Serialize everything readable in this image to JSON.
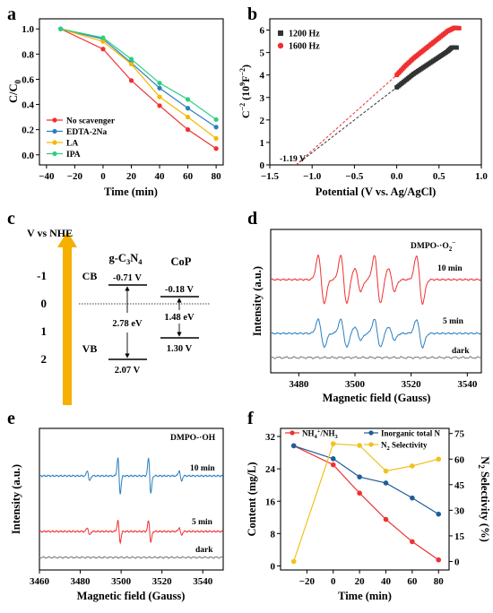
{
  "colors": {
    "red": "#f03030",
    "blue": "#2a7fc0",
    "orange": "#f5b800",
    "green": "#2ccf80",
    "dark": "#333333",
    "gray": "#777777",
    "darkblue": "#1f5d96",
    "yellow": "#f0c21c",
    "arrow": "#f5b000"
  },
  "chart_data": [
    {
      "panel": "a",
      "type": "line",
      "xlabel": "Time (min)",
      "ylabel": "C/C",
      "ylabel_sub": "0",
      "xlim": [
        -45,
        85
      ],
      "ylim": [
        -0.08,
        1.08
      ],
      "xticks": [
        -40,
        -20,
        0,
        20,
        40,
        60,
        80
      ],
      "yticks": [
        "0.0",
        "0.2",
        "0.4",
        "0.6",
        "0.8",
        "1.0"
      ],
      "x": [
        -30,
        0,
        20,
        40,
        60,
        80
      ],
      "series": [
        {
          "name": "No scavenger",
          "color": "red",
          "values": [
            1.0,
            0.84,
            0.59,
            0.39,
            0.2,
            0.05
          ]
        },
        {
          "name": "EDTA-2Na",
          "color": "blue",
          "values": [
            1.0,
            0.92,
            0.73,
            0.53,
            0.37,
            0.22
          ]
        },
        {
          "name": "LA",
          "color": "orange",
          "values": [
            1.0,
            0.9,
            0.72,
            0.46,
            0.3,
            0.13
          ]
        },
        {
          "name": "IPA",
          "color": "green",
          "values": [
            1.0,
            0.93,
            0.76,
            0.57,
            0.44,
            0.28
          ]
        }
      ]
    },
    {
      "panel": "b",
      "type": "scatter",
      "xlabel": "Potential (V vs. Ag/AgCl)",
      "ylabel": "C",
      "ylabel_sup": "−2",
      "ylabel_mid": " (10",
      "ylabel_sup2": "9",
      "ylabel_unit": "F",
      "ylabel_sup3": "−2",
      "ylabel_end": ")",
      "xlim": [
        -1.5,
        1.0
      ],
      "ylim": [
        0,
        6.5
      ],
      "xticks": [
        "−1.5",
        "−1.0",
        "−0.5",
        "0.0",
        "0.5",
        "1.0"
      ],
      "yticks": [
        "0",
        "1",
        "2",
        "3",
        "4",
        "5",
        "6"
      ],
      "annotation": "-1.19 V",
      "intercept": -1.19,
      "series": [
        {
          "name": "1200 Hz",
          "color": "dark",
          "x_range": [
            0.0,
            0.72
          ],
          "curve": [
            [
              0.0,
              3.45
            ],
            [
              0.1,
              3.75
            ],
            [
              0.2,
              4.05
            ],
            [
              0.3,
              4.3
            ],
            [
              0.4,
              4.55
            ],
            [
              0.5,
              4.8
            ],
            [
              0.6,
              5.05
            ],
            [
              0.65,
              5.22
            ],
            [
              0.72,
              5.22
            ]
          ]
        },
        {
          "name": "1600 Hz",
          "color": "red",
          "x_range": [
            0.0,
            0.75
          ],
          "curve": [
            [
              0.0,
              4.0
            ],
            [
              0.1,
              4.4
            ],
            [
              0.2,
              4.75
            ],
            [
              0.3,
              5.05
            ],
            [
              0.4,
              5.35
            ],
            [
              0.5,
              5.65
            ],
            [
              0.6,
              5.95
            ],
            [
              0.68,
              6.1
            ],
            [
              0.75,
              6.08
            ]
          ]
        }
      ]
    },
    {
      "panel": "d",
      "type": "line",
      "xlabel": "Magnetic field (Gauss)",
      "ylabel": "Intensity (a.u.)",
      "title": "DMPO-·O",
      "title_sub": "2",
      "title_sup": "−",
      "xlim": [
        3470,
        3545
      ],
      "xticks": [
        "3480",
        "3500",
        "3520",
        "3540"
      ],
      "series": [
        {
          "name": "10 min",
          "color": "red"
        },
        {
          "name": "5 min",
          "color": "blue"
        },
        {
          "name": "dark",
          "color": "gray"
        }
      ],
      "peaks_gauss": [
        3488,
        3496,
        3501,
        3508,
        3513,
        3523
      ]
    },
    {
      "panel": "e",
      "type": "line",
      "xlabel": "Magnetic field (Gauss)",
      "ylabel": "Intensity (a.u.)",
      "title": "DMPO-·OH",
      "xlim": [
        3460,
        3550
      ],
      "xticks": [
        "3460",
        "3480",
        "3500",
        "3520",
        "3540"
      ],
      "series": [
        {
          "name": "10 min",
          "color": "blue"
        },
        {
          "name": "5 min",
          "color": "red"
        },
        {
          "name": "dark",
          "color": "gray"
        }
      ],
      "peaks_gauss": [
        3484,
        3499,
        3514,
        3529
      ]
    },
    {
      "panel": "f",
      "type": "line",
      "xlabel": "Time (min)",
      "ylabel": "Content (mg/L)",
      "ylabel2_pre": "N",
      "ylabel2_sub": "2",
      "ylabel2_post": " Selectivity (%)",
      "xlim": [
        -40,
        88
      ],
      "ylim": [
        -1,
        34
      ],
      "y2lim": [
        -5,
        78
      ],
      "xticks": [
        "−20",
        "0",
        "20",
        "40",
        "60",
        "80"
      ],
      "yticks": [
        "0",
        "8",
        "16",
        "24",
        "32"
      ],
      "y2ticks": [
        "0",
        "15",
        "30",
        "45",
        "60",
        "75"
      ],
      "x": [
        -30,
        0,
        20,
        40,
        60,
        80
      ],
      "series": [
        {
          "name_pre": "NH",
          "name_sub1": "4",
          "name_sup": "+",
          "name_mid": "/NH",
          "name_sub2": "3",
          "color": "red",
          "axis": "left",
          "values": [
            29.7,
            25.0,
            18.0,
            11.5,
            6.0,
            1.5
          ]
        },
        {
          "name": "Inorganic total N",
          "color": "darkblue",
          "axis": "left",
          "values": [
            29.7,
            26.5,
            22.0,
            20.5,
            16.8,
            12.8
          ]
        },
        {
          "name_pre": "N",
          "name_sub1": "2",
          "name_post": " Selectivity",
          "color": "yellow",
          "axis": "right",
          "values": [
            0,
            69,
            68,
            53,
            56,
            60
          ]
        }
      ]
    }
  ],
  "panel_labels": [
    "a",
    "b",
    "c",
    "d",
    "e",
    "f"
  ],
  "diagram_c": {
    "axis_title": "V vs NHE",
    "ticks": [
      "-1",
      "0",
      "1",
      "2"
    ],
    "gcn_label": "g-C",
    "gcn_sub1": "3",
    "gcn_mid": "N",
    "gcn_sub2": "4",
    "cop_label": "CoP",
    "cb": "CB",
    "vb": "VB",
    "gcn_cb": "-0.71 V",
    "gcn_vb": "2.07 V",
    "gcn_gap": "2.78 eV",
    "cop_cb": "-0.18 V",
    "cop_vb": "1.30 V",
    "cop_gap": "1.48 eV"
  }
}
